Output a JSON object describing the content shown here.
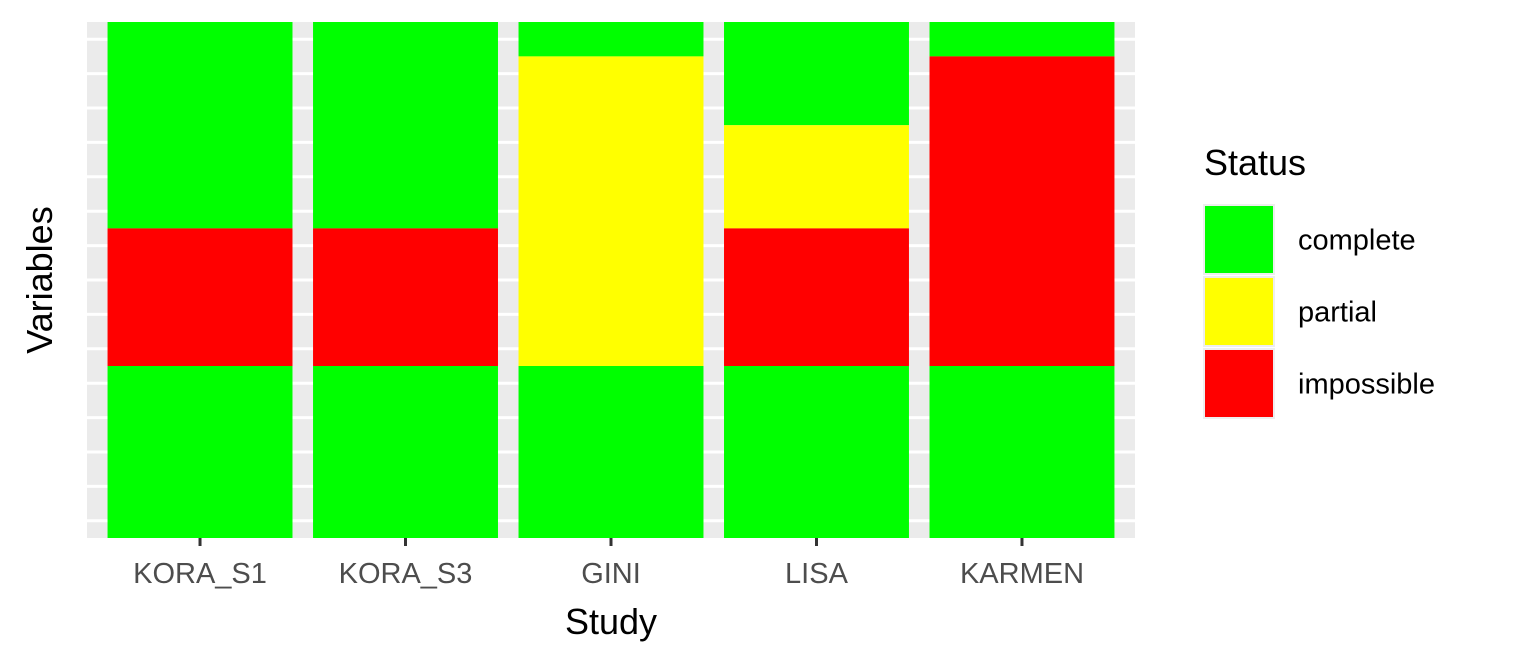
{
  "chart_data": {
    "type": "heatmap",
    "title": "",
    "xlabel": "Study",
    "ylabel": "Variables",
    "categories": [
      "KORA_S1",
      "KORA_S3",
      "GINI",
      "LISA",
      "KARMEN"
    ],
    "status_levels": [
      "complete",
      "partial",
      "impossible"
    ],
    "colors": {
      "complete": "#00ff00",
      "partial": "#ffff00",
      "impossible": "#ff0000"
    },
    "variables_from_top": 15,
    "cells_from_top": {
      "KORA_S1": [
        "complete",
        "complete",
        "complete",
        "complete",
        "complete",
        "complete",
        "impossible",
        "impossible",
        "impossible",
        "impossible",
        "complete",
        "complete",
        "complete",
        "complete",
        "complete"
      ],
      "KORA_S3": [
        "complete",
        "complete",
        "complete",
        "complete",
        "complete",
        "complete",
        "impossible",
        "impossible",
        "impossible",
        "impossible",
        "complete",
        "complete",
        "complete",
        "complete",
        "complete"
      ],
      "GINI": [
        "complete",
        "partial",
        "partial",
        "partial",
        "partial",
        "partial",
        "partial",
        "partial",
        "partial",
        "partial",
        "complete",
        "complete",
        "complete",
        "complete",
        "complete"
      ],
      "LISA": [
        "complete",
        "complete",
        "complete",
        "partial",
        "partial",
        "partial",
        "impossible",
        "impossible",
        "impossible",
        "impossible",
        "complete",
        "complete",
        "complete",
        "complete",
        "complete"
      ],
      "KARMEN": [
        "complete",
        "impossible",
        "impossible",
        "impossible",
        "impossible",
        "impossible",
        "impossible",
        "impossible",
        "impossible",
        "impossible",
        "complete",
        "complete",
        "complete",
        "complete",
        "complete"
      ]
    },
    "grid": true,
    "legend_position": "right",
    "legend": {
      "title": "Status",
      "entries": [
        "complete",
        "partial",
        "impossible"
      ]
    }
  }
}
